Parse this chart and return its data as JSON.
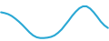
{
  "x": [
    0,
    1,
    2,
    3,
    4,
    5,
    6,
    7,
    8,
    9,
    10,
    11,
    12,
    13,
    14,
    15,
    16,
    17,
    18,
    19,
    20,
    21,
    22,
    23,
    24,
    25,
    26,
    27,
    28,
    29,
    30
  ],
  "y": [
    0.72,
    0.7,
    0.67,
    0.62,
    0.55,
    0.47,
    0.38,
    0.28,
    0.18,
    0.1,
    0.05,
    0.03,
    0.03,
    0.04,
    0.06,
    0.1,
    0.17,
    0.26,
    0.38,
    0.5,
    0.63,
    0.74,
    0.83,
    0.88,
    0.88,
    0.82,
    0.72,
    0.6,
    0.47,
    0.37,
    0.3
  ],
  "line_color": "#2aa8d4",
  "line_width": 1.5,
  "bg_color": "#ffffff"
}
